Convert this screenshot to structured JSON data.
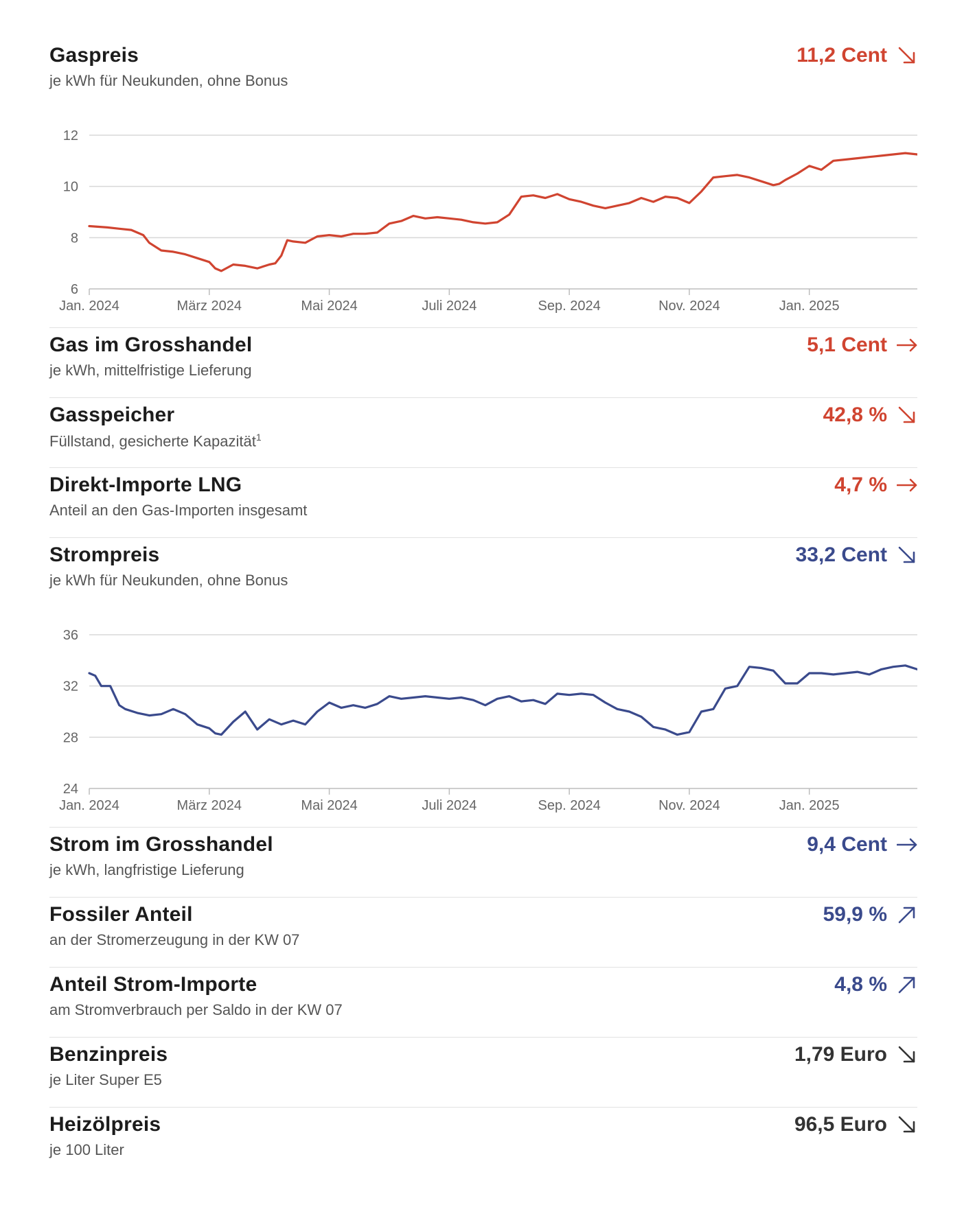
{
  "colors": {
    "red": "#d04430",
    "blue": "#3a4a8c",
    "dark": "#333333",
    "grid": "#d8d8d8"
  },
  "rows": {
    "gaspreis": {
      "title": "Gaspreis",
      "subtitle": "je kWh für Neukunden, ohne Bonus",
      "value": "11,2 Cent",
      "trend": "down",
      "color": "red"
    },
    "gas_grosshandel": {
      "title": "Gas im Grosshandel",
      "subtitle": "je kWh, mittelfristige Lieferung",
      "value": "5,1 Cent",
      "trend": "flat",
      "color": "red"
    },
    "gasspeicher": {
      "title": "Gasspeicher",
      "subtitle": "Füllstand, gesicherte Kapazität",
      "footnote": "1",
      "value": "42,8 %",
      "trend": "down",
      "color": "red"
    },
    "lng": {
      "title": "Direkt-Importe LNG",
      "subtitle": "Anteil an den Gas-Importen insgesamt",
      "value": "4,7 %",
      "trend": "flat",
      "color": "red"
    },
    "strompreis": {
      "title": "Strompreis",
      "subtitle": "je kWh für Neukunden, ohne Bonus",
      "value": "33,2 Cent",
      "trend": "down",
      "color": "blue"
    },
    "strom_grosshandel": {
      "title": "Strom im Grosshandel",
      "subtitle": "je kWh, langfristige Lieferung",
      "value": "9,4 Cent",
      "trend": "flat",
      "color": "blue"
    },
    "fossil": {
      "title": "Fossiler Anteil",
      "subtitle": "an der Stromerzeugung in der KW 07",
      "value": "59,9 %",
      "trend": "up",
      "color": "blue"
    },
    "stromimporte": {
      "title": "Anteil Strom-Importe",
      "subtitle": "am Stromverbrauch per Saldo in der KW 07",
      "value": "4,8 %",
      "trend": "up",
      "color": "blue"
    },
    "benzin": {
      "title": "Benzinpreis",
      "subtitle": "je Liter Super E5",
      "value": "1,79 Euro",
      "trend": "down",
      "color": "dark"
    },
    "heizoel": {
      "title": "Heizölpreis",
      "subtitle": "je 100 Liter",
      "value": "96,5 Euro",
      "trend": "down",
      "color": "dark"
    }
  },
  "chart_data": [
    {
      "type": "line",
      "title": "Gaspreis",
      "xlabel": "",
      "ylabel": "",
      "ylim": [
        6,
        12
      ],
      "yticks": [
        "12",
        "10",
        "8",
        "6"
      ],
      "ytick_values": [
        12,
        10,
        8,
        6
      ],
      "xlim": [
        0,
        13.8
      ],
      "xticks": [
        "Jan. 2024",
        "März 2024",
        "Mai 2024",
        "Juli 2024",
        "Sep. 2024",
        "Nov. 2024",
        "Jan. 2025"
      ],
      "xtick_values": [
        0,
        2,
        4,
        6,
        8,
        10,
        12
      ],
      "grid": true,
      "series": [
        {
          "name": "Gaspreis",
          "color": "#d04430",
          "x": [
            0,
            0.3,
            0.5,
            0.7,
            0.9,
            1.0,
            1.2,
            1.4,
            1.6,
            1.8,
            2.0,
            2.1,
            2.2,
            2.4,
            2.6,
            2.8,
            3.0,
            3.1,
            3.2,
            3.3,
            3.4,
            3.6,
            3.8,
            4.0,
            4.2,
            4.4,
            4.6,
            4.8,
            5.0,
            5.2,
            5.4,
            5.6,
            5.8,
            6.0,
            6.2,
            6.4,
            6.6,
            6.8,
            7.0,
            7.2,
            7.4,
            7.6,
            7.8,
            8.0,
            8.2,
            8.4,
            8.6,
            8.8,
            9.0,
            9.2,
            9.4,
            9.6,
            9.8,
            10.0,
            10.2,
            10.4,
            10.6,
            10.8,
            11.0,
            11.2,
            11.4,
            11.5,
            11.6,
            11.8,
            12.0,
            12.2,
            12.4,
            12.6,
            12.8,
            13.0,
            13.2,
            13.4,
            13.6,
            13.8
          ],
          "y": [
            8.45,
            8.4,
            8.35,
            8.3,
            8.1,
            7.8,
            7.5,
            7.45,
            7.35,
            7.2,
            7.05,
            6.8,
            6.7,
            6.95,
            6.9,
            6.8,
            6.95,
            7.0,
            7.3,
            7.9,
            7.85,
            7.8,
            8.05,
            8.1,
            8.05,
            8.15,
            8.15,
            8.2,
            8.55,
            8.65,
            8.85,
            8.75,
            8.8,
            8.75,
            8.7,
            8.6,
            8.55,
            8.6,
            8.9,
            9.6,
            9.65,
            9.55,
            9.7,
            9.5,
            9.4,
            9.25,
            9.15,
            9.25,
            9.35,
            9.55,
            9.4,
            9.6,
            9.55,
            9.35,
            9.8,
            10.35,
            10.4,
            10.45,
            10.35,
            10.2,
            10.05,
            10.1,
            10.25,
            10.5,
            10.8,
            10.65,
            11.0,
            11.05,
            11.1,
            11.15,
            11.2,
            11.25,
            11.3,
            11.25
          ]
        }
      ]
    },
    {
      "type": "line",
      "title": "Strompreis",
      "xlabel": "",
      "ylabel": "",
      "ylim": [
        24,
        36
      ],
      "yticks": [
        "36",
        "32",
        "28",
        "24"
      ],
      "ytick_values": [
        36,
        32,
        28,
        24
      ],
      "xlim": [
        0,
        13.8
      ],
      "xticks": [
        "Jan. 2024",
        "März 2024",
        "Mai 2024",
        "Juli 2024",
        "Sep. 2024",
        "Nov. 2024",
        "Jan. 2025"
      ],
      "xtick_values": [
        0,
        2,
        4,
        6,
        8,
        10,
        12
      ],
      "grid": true,
      "series": [
        {
          "name": "Strompreis",
          "color": "#3a4a8c",
          "x": [
            0,
            0.1,
            0.2,
            0.35,
            0.5,
            0.6,
            0.8,
            1.0,
            1.2,
            1.4,
            1.6,
            1.8,
            2.0,
            2.1,
            2.2,
            2.4,
            2.6,
            2.8,
            3.0,
            3.2,
            3.4,
            3.6,
            3.8,
            4.0,
            4.2,
            4.4,
            4.6,
            4.8,
            5.0,
            5.2,
            5.4,
            5.6,
            5.8,
            6.0,
            6.2,
            6.4,
            6.6,
            6.8,
            7.0,
            7.2,
            7.4,
            7.6,
            7.8,
            8.0,
            8.2,
            8.4,
            8.6,
            8.8,
            9.0,
            9.2,
            9.4,
            9.6,
            9.8,
            10.0,
            10.2,
            10.4,
            10.6,
            10.8,
            11.0,
            11.2,
            11.4,
            11.6,
            11.8,
            12.0,
            12.2,
            12.4,
            12.6,
            12.8,
            13.0,
            13.2,
            13.4,
            13.6,
            13.8
          ],
          "y": [
            33.0,
            32.8,
            32.0,
            32.0,
            30.5,
            30.2,
            29.9,
            29.7,
            29.8,
            30.2,
            29.8,
            29.0,
            28.7,
            28.3,
            28.2,
            29.2,
            30.0,
            28.6,
            29.4,
            29.0,
            29.3,
            29.0,
            30.0,
            30.7,
            30.3,
            30.5,
            30.3,
            30.6,
            31.2,
            31.0,
            31.1,
            31.2,
            31.1,
            31.0,
            31.1,
            30.9,
            30.5,
            31.0,
            31.2,
            30.8,
            30.9,
            30.6,
            31.4,
            31.3,
            31.4,
            31.3,
            30.7,
            30.2,
            30.0,
            29.6,
            28.8,
            28.6,
            28.2,
            28.4,
            30.0,
            30.2,
            31.8,
            32.0,
            33.5,
            33.4,
            33.2,
            32.2,
            32.2,
            33.0,
            33.0,
            32.9,
            33.0,
            33.1,
            32.9,
            33.3,
            33.5,
            33.6,
            33.3
          ]
        }
      ]
    }
  ]
}
